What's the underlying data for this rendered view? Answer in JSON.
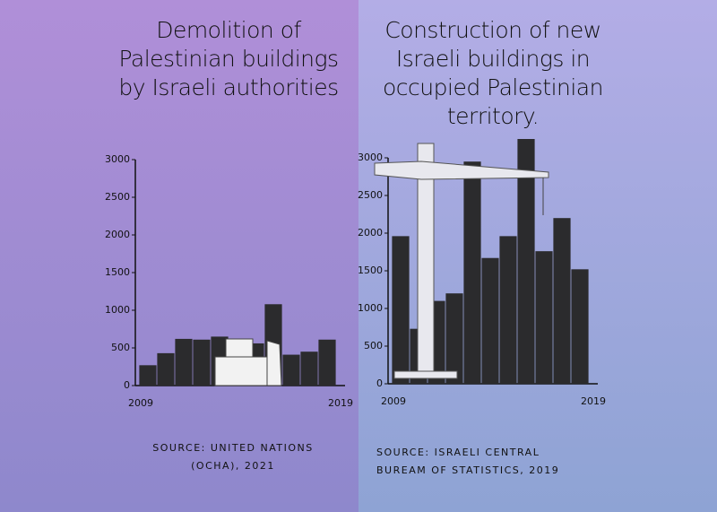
{
  "chart_data": [
    {
      "type": "bar",
      "title": "Demolition of Palestinian buildings by Israeli authorities",
      "categories": [
        "2009",
        null,
        null,
        null,
        null,
        null,
        null,
        null,
        null,
        null,
        "2019"
      ],
      "values": [
        270,
        430,
        620,
        610,
        650,
        590,
        560,
        1080,
        410,
        450,
        610
      ],
      "color": "#2b2b2d",
      "ylim": [
        0,
        3000
      ],
      "yticks": [
        0,
        500,
        1000,
        1500,
        2000,
        2500,
        3000
      ],
      "source": "SOURCE: UNITED NATIONS (OCHA), 2021"
    },
    {
      "type": "bar",
      "title": "Construction of new Israeli buildings in occupied Palestinian territory.",
      "categories": [
        "2009",
        null,
        null,
        null,
        null,
        null,
        null,
        null,
        null,
        null,
        "2019"
      ],
      "values": [
        1960,
        730,
        1100,
        1200,
        2950,
        1670,
        1960,
        3250,
        1760,
        2200,
        1520
      ],
      "color": "#2b2b2d",
      "ylim": [
        0,
        3000
      ],
      "yticks": [
        0,
        500,
        1000,
        1500,
        2000,
        2500,
        3000
      ],
      "source": "SOURCE: ISRAELI CENTRAL BUREAM OF STATISTICS, 2019"
    }
  ]
}
